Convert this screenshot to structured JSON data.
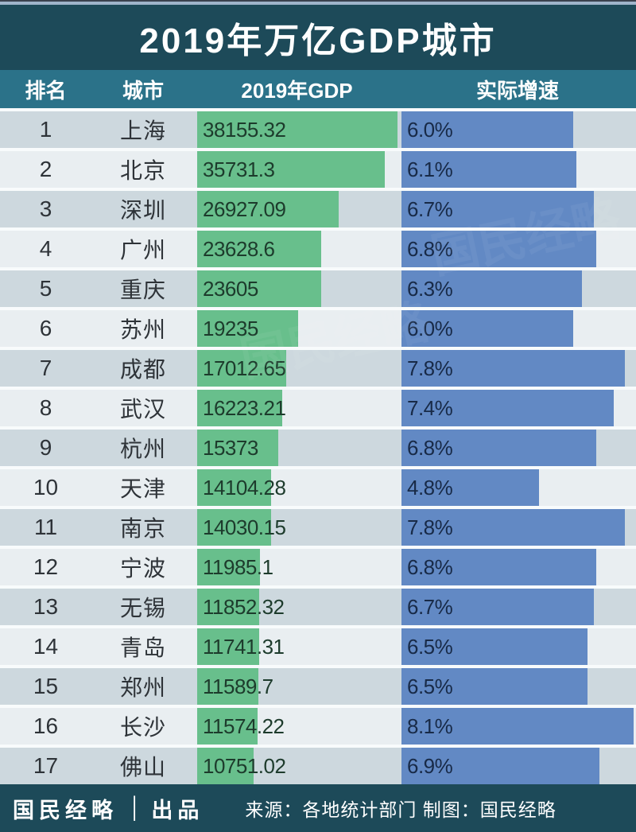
{
  "title": "2019年万亿GDP城市",
  "columns": {
    "rank": "排名",
    "city": "城市",
    "gdp": "2019年GDP",
    "growth": "实际增速"
  },
  "colors": {
    "banner_bg": "#1d4a59",
    "column_header_bg": "#2b7289",
    "gdp_bar": "#68bf8c",
    "growth_bar": "#6289c4",
    "row_odd": "#cdd8de",
    "row_even": "#e9eef1"
  },
  "chart_data": {
    "type": "bar",
    "orientation": "horizontal",
    "title": "2019年万亿GDP城市",
    "columns": [
      "排名",
      "城市",
      "2019年GDP",
      "实际增速"
    ],
    "gdp_axis_max": 38155.32,
    "growth_axis_max_pct": 8.1,
    "series": [
      {
        "name": "2019年GDP",
        "color": "#68bf8c"
      },
      {
        "name": "实际增速",
        "color": "#6289c4"
      }
    ],
    "rows": [
      {
        "rank": "1",
        "city": "上海",
        "gdp": "38155.32",
        "growth": "6.0%"
      },
      {
        "rank": "2",
        "city": "北京",
        "gdp": "35731.3",
        "growth": "6.1%"
      },
      {
        "rank": "3",
        "city": "深圳",
        "gdp": "26927.09",
        "growth": "6.7%"
      },
      {
        "rank": "4",
        "city": "广州",
        "gdp": "23628.6",
        "growth": "6.8%"
      },
      {
        "rank": "5",
        "city": "重庆",
        "gdp": "23605",
        "growth": "6.3%"
      },
      {
        "rank": "6",
        "city": "苏州",
        "gdp": "19235",
        "growth": "6.0%"
      },
      {
        "rank": "7",
        "city": "成都",
        "gdp": "17012.65",
        "growth": "7.8%"
      },
      {
        "rank": "8",
        "city": "武汉",
        "gdp": "16223.21",
        "growth": "7.4%"
      },
      {
        "rank": "9",
        "city": "杭州",
        "gdp": "15373",
        "growth": "6.8%"
      },
      {
        "rank": "10",
        "city": "天津",
        "gdp": "14104.28",
        "growth": "4.8%"
      },
      {
        "rank": "11",
        "city": "南京",
        "gdp": "14030.15",
        "growth": "7.8%"
      },
      {
        "rank": "12",
        "city": "宁波",
        "gdp": "11985.1",
        "growth": "6.8%"
      },
      {
        "rank": "13",
        "city": "无锡",
        "gdp": "11852.32",
        "growth": "6.7%"
      },
      {
        "rank": "14",
        "city": "青岛",
        "gdp": "11741.31",
        "growth": "6.5%"
      },
      {
        "rank": "15",
        "city": "郑州",
        "gdp": "11589.7",
        "growth": "6.5%"
      },
      {
        "rank": "16",
        "city": "长沙",
        "gdp": "11574.22",
        "growth": "8.1%"
      },
      {
        "rank": "17",
        "city": "佛山",
        "gdp": "10751.02",
        "growth": "6.9%"
      }
    ]
  },
  "footer": {
    "brand": "国民经略",
    "divider": "│",
    "brand_suffix": "出品",
    "source": "来源：各地统计部门 制图：国民经略"
  }
}
